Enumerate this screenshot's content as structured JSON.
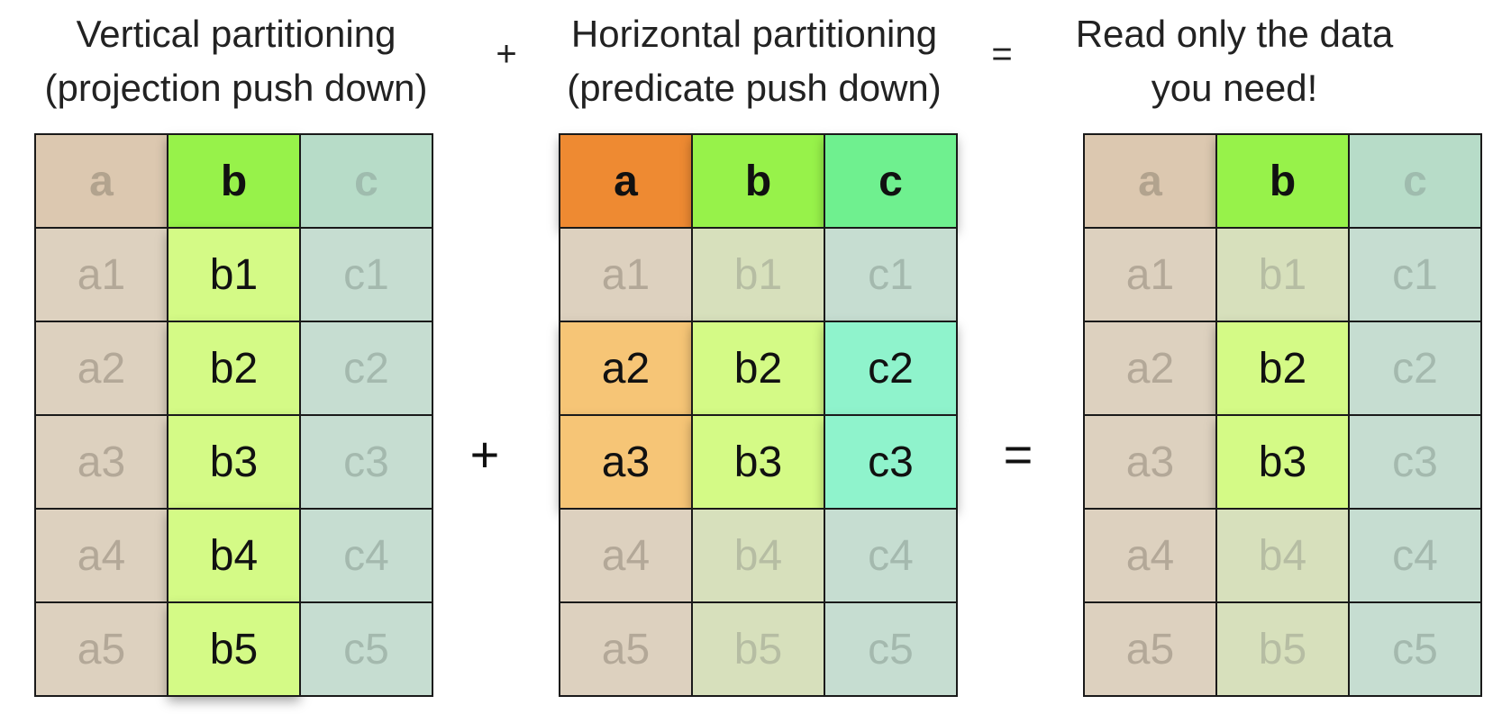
{
  "captions": {
    "vertical": {
      "line1": "Vertical partitioning",
      "line2": "(projection push down)"
    },
    "horizontal": {
      "line1": "Horizontal partitioning",
      "line2": "(predicate push down)"
    },
    "result": {
      "line1": "Read only the data",
      "line2": "you need!"
    }
  },
  "operators": {
    "plus": "+",
    "equals": "="
  },
  "tables": {
    "vertical": {
      "headers": [
        "a",
        "b",
        "c"
      ],
      "rows": [
        [
          "a1",
          "b1",
          "c1"
        ],
        [
          "a2",
          "b2",
          "c2"
        ],
        [
          "a3",
          "b3",
          "c3"
        ],
        [
          "a4",
          "b4",
          "c4"
        ],
        [
          "a5",
          "b5",
          "c5"
        ]
      ],
      "highlighted_columns": [
        "b"
      ]
    },
    "horizontal": {
      "headers": [
        "a",
        "b",
        "c"
      ],
      "rows": [
        [
          "a1",
          "b1",
          "c1"
        ],
        [
          "a2",
          "b2",
          "c2"
        ],
        [
          "a3",
          "b3",
          "c3"
        ],
        [
          "a4",
          "b4",
          "c4"
        ],
        [
          "a5",
          "b5",
          "c5"
        ]
      ],
      "highlighted_rows": [
        2,
        3
      ]
    },
    "result": {
      "headers": [
        "a",
        "b",
        "c"
      ],
      "rows": [
        [
          "a1",
          "b1",
          "c1"
        ],
        [
          "a2",
          "b2",
          "c2"
        ],
        [
          "a3",
          "b3",
          "c3"
        ],
        [
          "a4",
          "b4",
          "c4"
        ],
        [
          "a5",
          "b5",
          "c5"
        ]
      ],
      "highlighted_cells": [
        "b2",
        "b3"
      ]
    }
  },
  "colors": {
    "column_a_header": "#ee8a32",
    "column_a_cell": "#f6c576",
    "column_b_header": "#97f24a",
    "column_b_cell": "#d4fa86",
    "column_c_header": "#6ff08f",
    "column_c_cell": "#8ff3cc",
    "faded_a": "#ddd1bf",
    "faded_b": "#d7e0bc",
    "faded_c": "#c6ddd1"
  }
}
